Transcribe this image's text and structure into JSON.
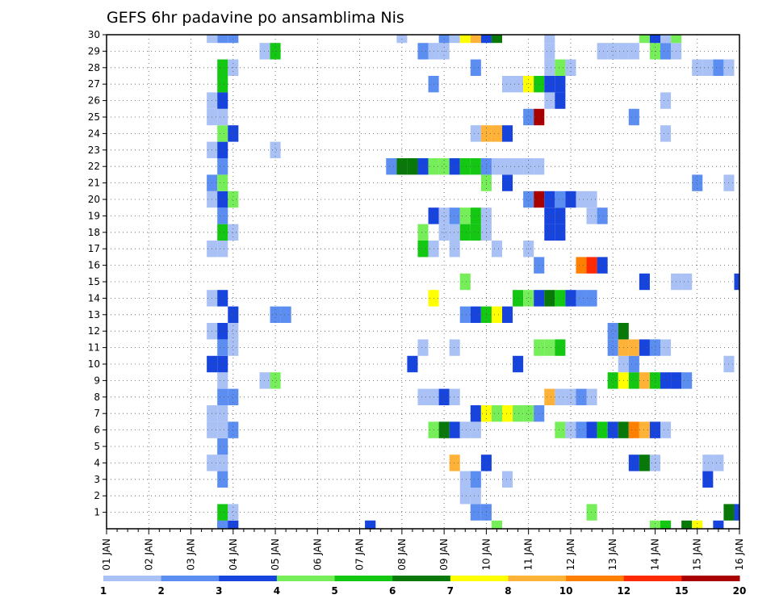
{
  "chart_data": {
    "type": "heatmap",
    "title": "GEFS 6hr padavine po ansamblima Nis",
    "x_ticks": [
      "01 JAN",
      "02 JAN",
      "03 JAN",
      "04 JAN",
      "05 JAN",
      "06 JAN",
      "07 JAN",
      "08 JAN",
      "09 JAN",
      "10 JAN",
      "11 JAN",
      "12 JAN",
      "13 JAN",
      "14 JAN",
      "15 JAN",
      "16 JAN"
    ],
    "y_ticks": [
      "1",
      "2",
      "3",
      "4",
      "5",
      "6",
      "7",
      "8",
      "9",
      "10",
      "11",
      "12",
      "13",
      "14",
      "15",
      "16",
      "17",
      "18",
      "19",
      "20",
      "21",
      "22",
      "23",
      "24",
      "25",
      "26",
      "27",
      "28",
      "29",
      "30"
    ],
    "xlim": [
      0,
      60
    ],
    "ylim": [
      0,
      30
    ],
    "steps_per_day": 4,
    "grid": true,
    "colorbar": {
      "labels": [
        "1",
        "2",
        "3",
        "4",
        "5",
        "6",
        "7",
        "8",
        "10",
        "12",
        "15",
        "20"
      ],
      "colors": [
        "#a9c1f4",
        "#5b8ef0",
        "#1744dc",
        "#76ee5a",
        "#13c713",
        "#087808",
        "#ffff00",
        "#ffb238",
        "#ff7f00",
        "#ff2a00",
        "#a80000"
      ]
    },
    "cells": [
      [
        11,
        0,
        2
      ],
      [
        11,
        0,
        1
      ],
      [
        12,
        0,
        2
      ],
      [
        25,
        0,
        1
      ],
      [
        25,
        0,
        2
      ],
      [
        37,
        0,
        3
      ],
      [
        52,
        0,
        3
      ],
      [
        53,
        0,
        4
      ],
      [
        55,
        0,
        5
      ],
      [
        56,
        0,
        6
      ],
      [
        58,
        0,
        2
      ],
      [
        11,
        1,
        4
      ],
      [
        12,
        1,
        0
      ],
      [
        35,
        1,
        1
      ],
      [
        36,
        1,
        1
      ],
      [
        46,
        1,
        3
      ],
      [
        59,
        1,
        5
      ],
      [
        60,
        1,
        2
      ],
      [
        34,
        2,
        0
      ],
      [
        35,
        2,
        0
      ],
      [
        11,
        3,
        1
      ],
      [
        34,
        3,
        0
      ],
      [
        35,
        3,
        1
      ],
      [
        38,
        3,
        0
      ],
      [
        57,
        3,
        2
      ],
      [
        10,
        4,
        0
      ],
      [
        11,
        4,
        0
      ],
      [
        33,
        4,
        7
      ],
      [
        36,
        4,
        2
      ],
      [
        50,
        4,
        2
      ],
      [
        51,
        4,
        5
      ],
      [
        52,
        4,
        0
      ],
      [
        57,
        4,
        0
      ],
      [
        58,
        4,
        0
      ],
      [
        11,
        5,
        1
      ],
      [
        10,
        6,
        0
      ],
      [
        11,
        6,
        0
      ],
      [
        12,
        6,
        1
      ],
      [
        31,
        6,
        3
      ],
      [
        32,
        6,
        5
      ],
      [
        33,
        6,
        2
      ],
      [
        34,
        6,
        0
      ],
      [
        35,
        6,
        0
      ],
      [
        43,
        6,
        3
      ],
      [
        44,
        6,
        0
      ],
      [
        45,
        6,
        1
      ],
      [
        46,
        6,
        2
      ],
      [
        47,
        6,
        4
      ],
      [
        48,
        6,
        2
      ],
      [
        49,
        6,
        5
      ],
      [
        50,
        6,
        8
      ],
      [
        51,
        6,
        7
      ],
      [
        52,
        6,
        2
      ],
      [
        53,
        6,
        0
      ],
      [
        10,
        7,
        0
      ],
      [
        11,
        7,
        0
      ],
      [
        35,
        7,
        2
      ],
      [
        36,
        7,
        6
      ],
      [
        37,
        7,
        3
      ],
      [
        38,
        7,
        6
      ],
      [
        39,
        7,
        3
      ],
      [
        40,
        7,
        3
      ],
      [
        41,
        7,
        1
      ],
      [
        11,
        8,
        1
      ],
      [
        12,
        8,
        1
      ],
      [
        30,
        8,
        0
      ],
      [
        31,
        8,
        0
      ],
      [
        32,
        8,
        2
      ],
      [
        33,
        8,
        0
      ],
      [
        42,
        8,
        7
      ],
      [
        43,
        8,
        0
      ],
      [
        44,
        8,
        0
      ],
      [
        45,
        8,
        1
      ],
      [
        46,
        8,
        0
      ],
      [
        11,
        9,
        0
      ],
      [
        15,
        9,
        0
      ],
      [
        16,
        9,
        3
      ],
      [
        48,
        9,
        4
      ],
      [
        49,
        9,
        6
      ],
      [
        50,
        9,
        4
      ],
      [
        51,
        9,
        7
      ],
      [
        52,
        9,
        4
      ],
      [
        53,
        9,
        2
      ],
      [
        54,
        9,
        2
      ],
      [
        55,
        9,
        1
      ],
      [
        10,
        10,
        2
      ],
      [
        11,
        10,
        2
      ],
      [
        29,
        10,
        2
      ],
      [
        39,
        10,
        2
      ],
      [
        49,
        10,
        0
      ],
      [
        50,
        10,
        1
      ],
      [
        59,
        10,
        0
      ],
      [
        11,
        11,
        1
      ],
      [
        12,
        11,
        0
      ],
      [
        30,
        11,
        0
      ],
      [
        33,
        11,
        0
      ],
      [
        41,
        11,
        3
      ],
      [
        42,
        11,
        3
      ],
      [
        43,
        11,
        4
      ],
      [
        48,
        11,
        1
      ],
      [
        49,
        11,
        7
      ],
      [
        50,
        11,
        7
      ],
      [
        51,
        11,
        2
      ],
      [
        52,
        11,
        1
      ],
      [
        53,
        11,
        0
      ],
      [
        10,
        12,
        0
      ],
      [
        11,
        12,
        2
      ],
      [
        12,
        12,
        0
      ],
      [
        48,
        12,
        1
      ],
      [
        49,
        12,
        5
      ],
      [
        12,
        13,
        2
      ],
      [
        16,
        13,
        1
      ],
      [
        17,
        13,
        1
      ],
      [
        34,
        13,
        1
      ],
      [
        35,
        13,
        2
      ],
      [
        36,
        13,
        4
      ],
      [
        37,
        13,
        6
      ],
      [
        38,
        13,
        2
      ],
      [
        10,
        14,
        0
      ],
      [
        11,
        14,
        2
      ],
      [
        31,
        14,
        6
      ],
      [
        39,
        14,
        4
      ],
      [
        40,
        14,
        3
      ],
      [
        41,
        14,
        2
      ],
      [
        42,
        14,
        5
      ],
      [
        43,
        14,
        4
      ],
      [
        44,
        14,
        2
      ],
      [
        45,
        14,
        1
      ],
      [
        46,
        14,
        1
      ],
      [
        34,
        15,
        3
      ],
      [
        51,
        15,
        2
      ],
      [
        54,
        15,
        0
      ],
      [
        55,
        15,
        0
      ],
      [
        60,
        15,
        2
      ],
      [
        41,
        16,
        1
      ],
      [
        45,
        16,
        8
      ],
      [
        46,
        16,
        9
      ],
      [
        47,
        16,
        2
      ],
      [
        10,
        17,
        0
      ],
      [
        11,
        17,
        0
      ],
      [
        30,
        17,
        4
      ],
      [
        31,
        17,
        0
      ],
      [
        33,
        17,
        0
      ],
      [
        37,
        17,
        0
      ],
      [
        40,
        17,
        0
      ],
      [
        11,
        18,
        4
      ],
      [
        12,
        18,
        0
      ],
      [
        30,
        18,
        3
      ],
      [
        32,
        18,
        0
      ],
      [
        33,
        18,
        0
      ],
      [
        34,
        18,
        4
      ],
      [
        35,
        18,
        4
      ],
      [
        36,
        18,
        0
      ],
      [
        42,
        18,
        2
      ],
      [
        43,
        18,
        2
      ],
      [
        11,
        19,
        1
      ],
      [
        31,
        19,
        2
      ],
      [
        32,
        19,
        0
      ],
      [
        33,
        19,
        1
      ],
      [
        34,
        19,
        3
      ],
      [
        35,
        19,
        4
      ],
      [
        36,
        19,
        0
      ],
      [
        42,
        19,
        2
      ],
      [
        43,
        19,
        2
      ],
      [
        46,
        19,
        0
      ],
      [
        47,
        19,
        1
      ],
      [
        10,
        20,
        0
      ],
      [
        11,
        20,
        2
      ],
      [
        12,
        20,
        3
      ],
      [
        40,
        20,
        1
      ],
      [
        41,
        20,
        10
      ],
      [
        42,
        20,
        2
      ],
      [
        43,
        20,
        1
      ],
      [
        44,
        20,
        2
      ],
      [
        45,
        20,
        0
      ],
      [
        46,
        20,
        0
      ],
      [
        10,
        21,
        1
      ],
      [
        11,
        21,
        3
      ],
      [
        36,
        21,
        3
      ],
      [
        38,
        21,
        2
      ],
      [
        56,
        21,
        1
      ],
      [
        59,
        21,
        0
      ],
      [
        11,
        22,
        1
      ],
      [
        27,
        22,
        1
      ],
      [
        28,
        22,
        5
      ],
      [
        29,
        22,
        5
      ],
      [
        30,
        22,
        2
      ],
      [
        31,
        22,
        3
      ],
      [
        32,
        22,
        3
      ],
      [
        33,
        22,
        2
      ],
      [
        34,
        22,
        4
      ],
      [
        35,
        22,
        4
      ],
      [
        36,
        22,
        1
      ],
      [
        37,
        22,
        0
      ],
      [
        38,
        22,
        0
      ],
      [
        39,
        22,
        0
      ],
      [
        40,
        22,
        0
      ],
      [
        41,
        22,
        0
      ],
      [
        10,
        23,
        0
      ],
      [
        11,
        23,
        2
      ],
      [
        16,
        23,
        0
      ],
      [
        11,
        24,
        3
      ],
      [
        12,
        24,
        2
      ],
      [
        35,
        24,
        0
      ],
      [
        36,
        24,
        7
      ],
      [
        37,
        24,
        7
      ],
      [
        38,
        24,
        2
      ],
      [
        53,
        24,
        0
      ],
      [
        10,
        25,
        0
      ],
      [
        11,
        25,
        0
      ],
      [
        40,
        25,
        1
      ],
      [
        41,
        25,
        10
      ],
      [
        50,
        25,
        1
      ],
      [
        10,
        26,
        0
      ],
      [
        11,
        26,
        2
      ],
      [
        42,
        26,
        0
      ],
      [
        43,
        26,
        2
      ],
      [
        53,
        26,
        0
      ],
      [
        11,
        27,
        4
      ],
      [
        31,
        27,
        1
      ],
      [
        38,
        27,
        0
      ],
      [
        39,
        27,
        0
      ],
      [
        40,
        27,
        6
      ],
      [
        41,
        27,
        4
      ],
      [
        42,
        27,
        2
      ],
      [
        43,
        27,
        2
      ],
      [
        11,
        28,
        4
      ],
      [
        12,
        28,
        0
      ],
      [
        35,
        28,
        1
      ],
      [
        42,
        28,
        0
      ],
      [
        43,
        28,
        3
      ],
      [
        44,
        28,
        0
      ],
      [
        56,
        28,
        0
      ],
      [
        57,
        28,
        0
      ],
      [
        58,
        28,
        1
      ],
      [
        59,
        28,
        0
      ],
      [
        15,
        29,
        0
      ],
      [
        16,
        29,
        4
      ],
      [
        30,
        29,
        1
      ],
      [
        31,
        29,
        0
      ],
      [
        32,
        29,
        0
      ],
      [
        42,
        29,
        0
      ],
      [
        47,
        29,
        0
      ],
      [
        48,
        29,
        0
      ],
      [
        49,
        29,
        0
      ],
      [
        50,
        29,
        0
      ],
      [
        52,
        29,
        3
      ],
      [
        53,
        29,
        1
      ],
      [
        54,
        29,
        0
      ],
      [
        11,
        30,
        1
      ],
      [
        10,
        30,
        0
      ],
      [
        12,
        30,
        1
      ],
      [
        28,
        30,
        0
      ],
      [
        32,
        30,
        1
      ],
      [
        33,
        30,
        0
      ],
      [
        34,
        30,
        6
      ],
      [
        35,
        30,
        7
      ],
      [
        36,
        30,
        2
      ],
      [
        37,
        30,
        5
      ],
      [
        42,
        30,
        0
      ],
      [
        51,
        30,
        3
      ],
      [
        52,
        30,
        2
      ],
      [
        53,
        30,
        0
      ],
      [
        54,
        30,
        3
      ]
    ]
  }
}
